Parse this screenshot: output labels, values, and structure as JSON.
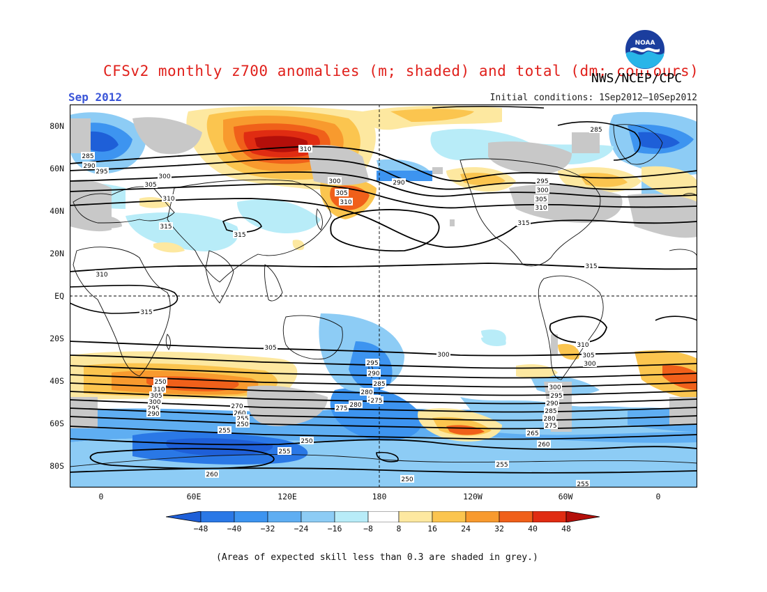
{
  "title": "CFSv2 monthly z700 anomalies (m; shaded) and total (dm; contours)",
  "agency": "NWS/NCEP/CPC",
  "logo_text": "NOAA",
  "month": "Sep 2012",
  "initial_conditions": "Initial conditions: 1Sep2012–10Sep2012",
  "footnote": "(Areas of expected skill less than 0.3 are shaded in grey.)",
  "lat_labels": [
    "80N",
    "60N",
    "40N",
    "20N",
    "EQ",
    "20S",
    "40S",
    "60S",
    "80S"
  ],
  "lon_labels": [
    "0",
    "60E",
    "120E",
    "180",
    "120W",
    "60W",
    "0"
  ],
  "colorbar": {
    "levels": [
      "−48",
      "−40",
      "−32",
      "−24",
      "−16",
      "−8",
      "8",
      "16",
      "24",
      "32",
      "40",
      "48"
    ],
    "colors": [
      "#1e5fd8",
      "#2a78e6",
      "#3d94f0",
      "#5faef2",
      "#8dccf5",
      "#b8ecf8",
      "#ffffff",
      "#fde8a0",
      "#fbc54f",
      "#f89a2e",
      "#f0601a",
      "#e02c12",
      "#b40f0a"
    ]
  },
  "contour_values": [
    "250",
    "255",
    "260",
    "265",
    "270",
    "275",
    "280",
    "285",
    "290",
    "295",
    "300",
    "305",
    "310",
    "315"
  ],
  "contour_labels": [
    "285",
    "290",
    "295",
    "300",
    "305",
    "310",
    "315",
    "315",
    "310",
    "300",
    "305",
    "310",
    "290",
    "285",
    "295",
    "300",
    "305",
    "310",
    "315",
    "315",
    "310",
    "315",
    "305",
    "300",
    "295",
    "290",
    "285",
    "280",
    "275",
    "270",
    "265",
    "260",
    "255",
    "250",
    "310",
    "305",
    "300",
    "295",
    "290",
    "285",
    "280",
    "275",
    "270",
    "260",
    "255",
    "250",
    "255",
    "260",
    "310",
    "305",
    "300",
    "295",
    "290",
    "285",
    "280",
    "275",
    "270",
    "265",
    "260",
    "255",
    "250",
    "255",
    "255",
    "285",
    "295"
  ],
  "skill_note_color": "#c8c8c8"
}
